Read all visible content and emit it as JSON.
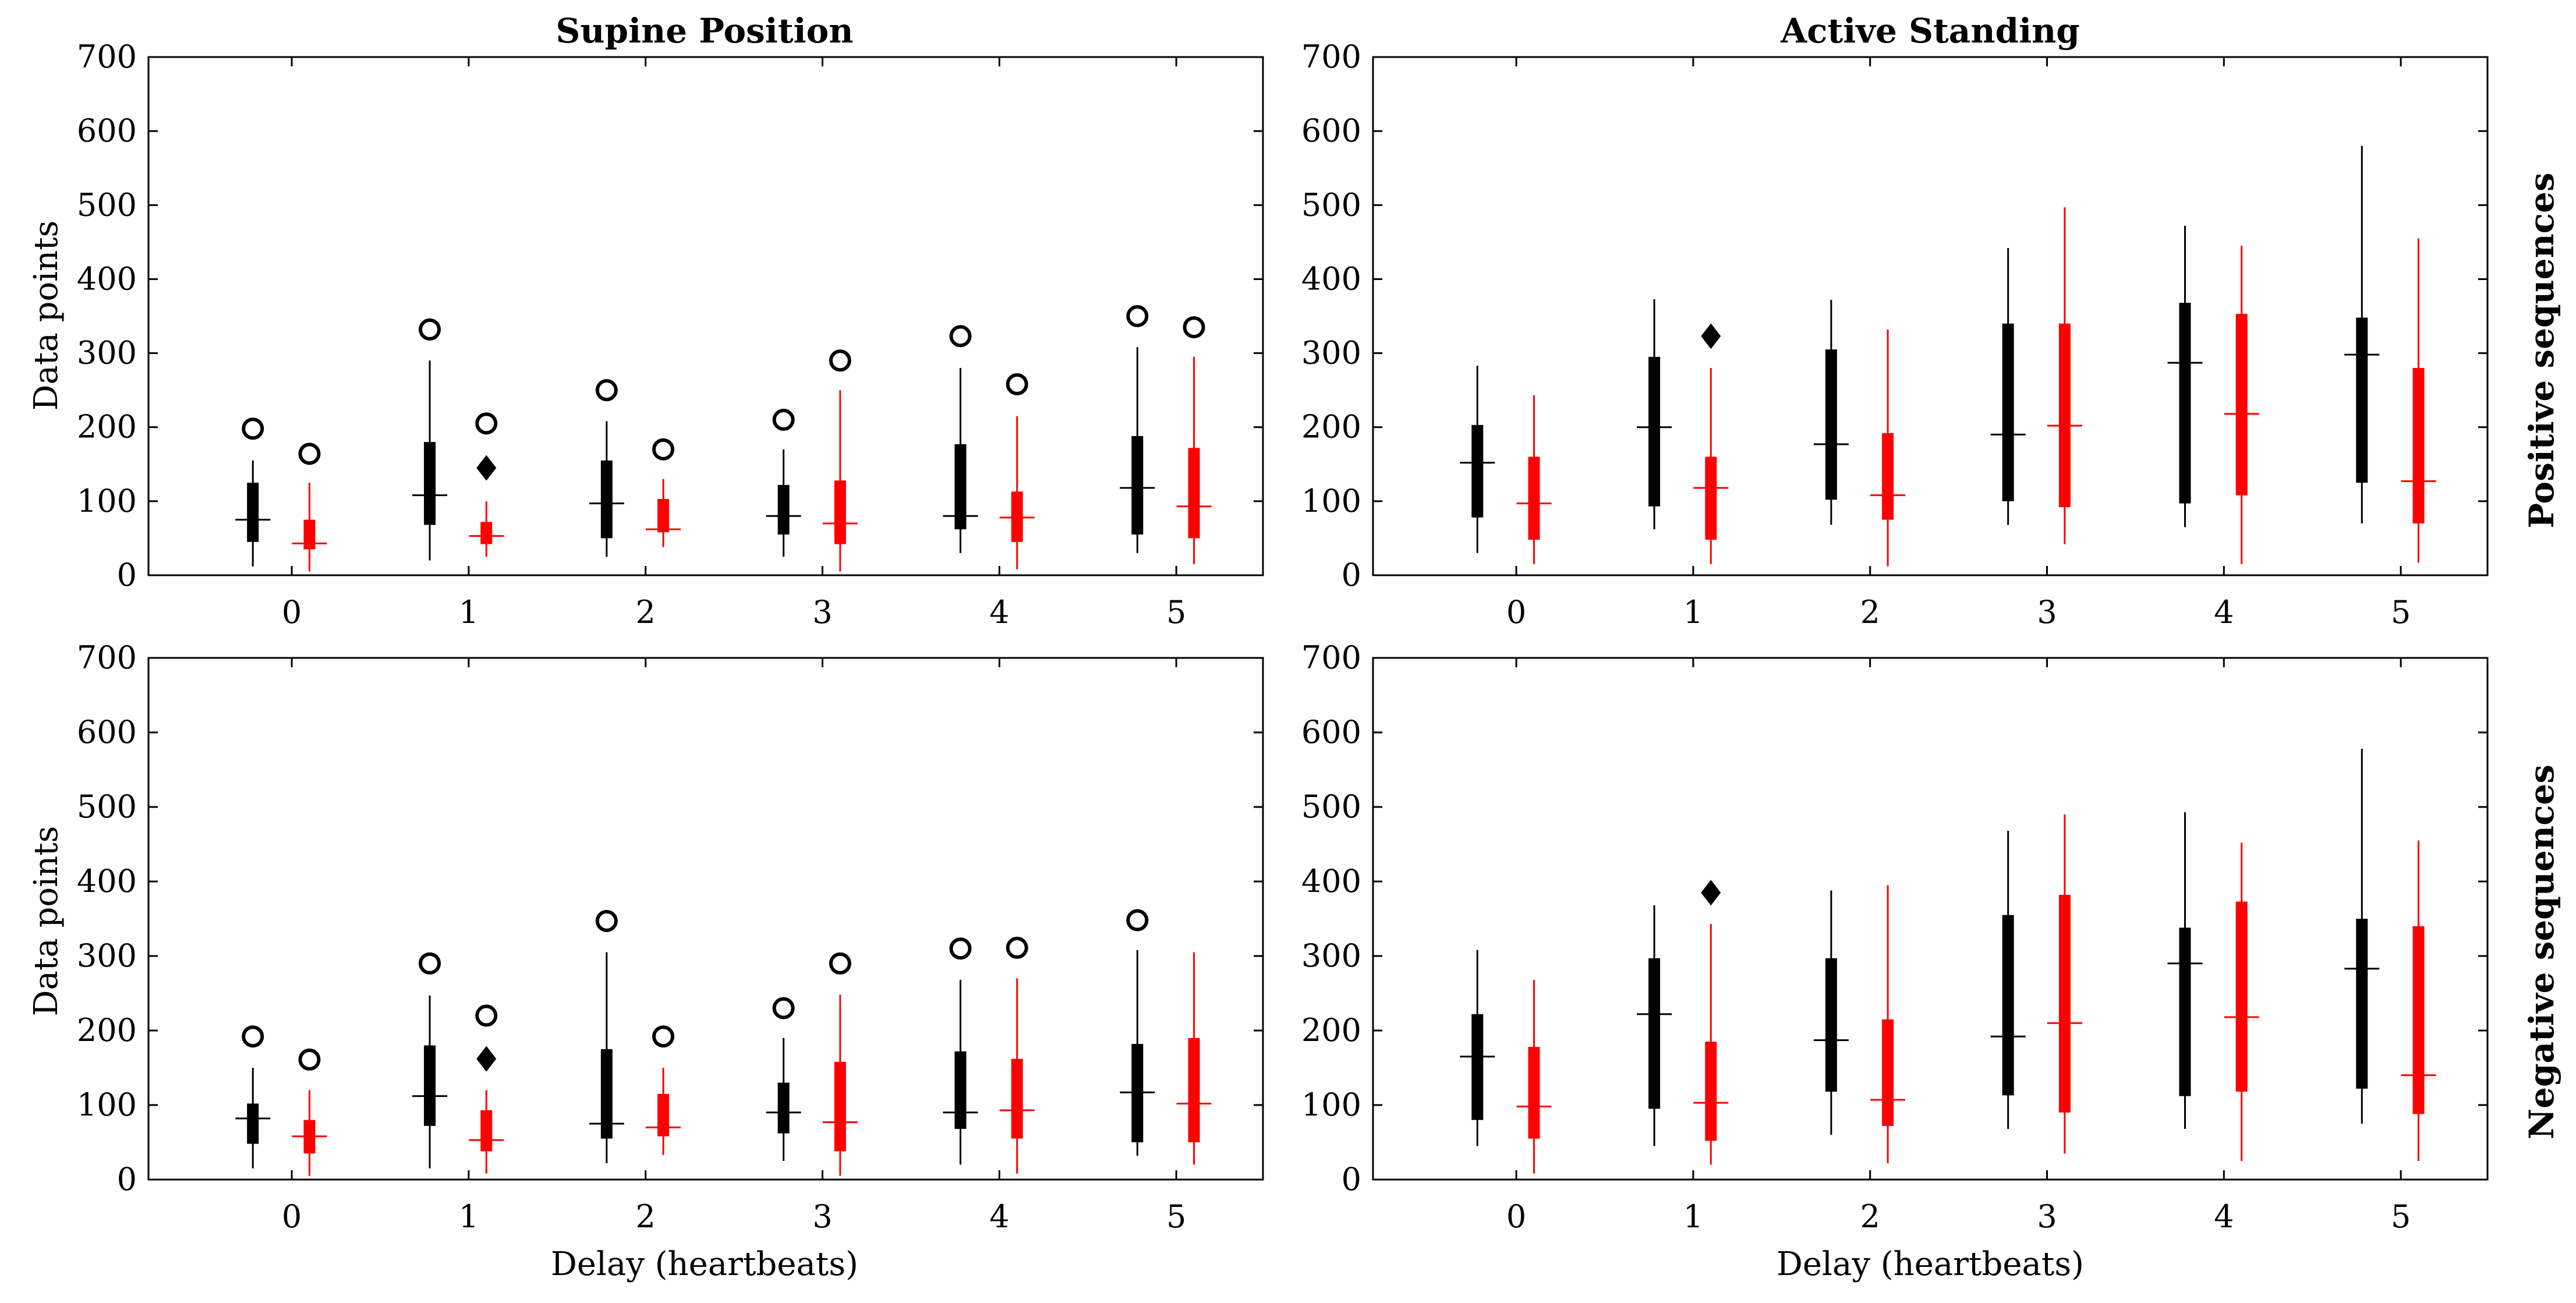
{
  "figure": {
    "col_titles": [
      "Supine Position",
      "Active Standing"
    ],
    "row_titles": [
      "Positive sequences",
      "Negative sequences"
    ],
    "ylabel": "Data points",
    "xlabel": "Delay (heartbeats)"
  },
  "colors": {
    "series_a": "#000000",
    "series_b": "#ff0000",
    "axes": "#000000"
  },
  "chart_data": [
    {
      "type": "boxplot",
      "panel": "supine-positive",
      "title": "Supine Position",
      "ylabel": "Data points",
      "xlabel": "",
      "ylim": [
        0,
        700
      ],
      "yticks": [
        0,
        100,
        200,
        300,
        400,
        500,
        600,
        700
      ],
      "categories": [
        "0",
        "1",
        "2",
        "3",
        "4",
        "5"
      ],
      "series": [
        {
          "name": "black",
          "color": "#000000",
          "boxes": [
            {
              "min": 12,
              "q1": 45,
              "median": 75,
              "q3": 125,
              "max": 155,
              "outlier": 198
            },
            {
              "min": 20,
              "q1": 68,
              "median": 108,
              "q3": 180,
              "max": 290,
              "outlier": 332
            },
            {
              "min": 25,
              "q1": 50,
              "median": 97,
              "q3": 155,
              "max": 208,
              "outlier": 250
            },
            {
              "min": 25,
              "q1": 55,
              "median": 80,
              "q3": 122,
              "max": 170,
              "outlier": 210
            },
            {
              "min": 30,
              "q1": 62,
              "median": 80,
              "q3": 177,
              "max": 280,
              "outlier": 323
            },
            {
              "min": 30,
              "q1": 55,
              "median": 118,
              "q3": 188,
              "max": 308,
              "outlier": 350
            }
          ]
        },
        {
          "name": "red",
          "color": "#ff0000",
          "boxes": [
            {
              "min": 5,
              "q1": 35,
              "median": 43,
              "q3": 75,
              "max": 125,
              "outlier": 164
            },
            {
              "min": 25,
              "q1": 42,
              "median": 53,
              "q3": 72,
              "max": 100,
              "outlier": 205
            },
            {
              "min": 38,
              "q1": 58,
              "median": 62,
              "q3": 103,
              "max": 130,
              "outlier": 170
            },
            {
              "min": 5,
              "q1": 42,
              "median": 70,
              "q3": 128,
              "max": 250,
              "outlier": 290
            },
            {
              "min": 8,
              "q1": 45,
              "median": 78,
              "q3": 113,
              "max": 215,
              "outlier": 258
            },
            {
              "min": 15,
              "q1": 50,
              "median": 93,
              "q3": 172,
              "max": 295,
              "outlier": 335
            }
          ]
        }
      ],
      "diamond": {
        "category": "1",
        "value": 145
      }
    },
    {
      "type": "boxplot",
      "panel": "standing-positive",
      "title": "Active Standing",
      "ylabel": "",
      "xlabel": "",
      "ylim": [
        0,
        700
      ],
      "yticks": [
        0,
        100,
        200,
        300,
        400,
        500,
        600,
        700
      ],
      "categories": [
        "0",
        "1",
        "2",
        "3",
        "4",
        "5"
      ],
      "series": [
        {
          "name": "black",
          "color": "#000000",
          "boxes": [
            {
              "min": 30,
              "q1": 78,
              "median": 152,
              "q3": 203,
              "max": 283
            },
            {
              "min": 62,
              "q1": 93,
              "median": 200,
              "q3": 295,
              "max": 373
            },
            {
              "min": 68,
              "q1": 102,
              "median": 177,
              "q3": 305,
              "max": 372
            },
            {
              "min": 68,
              "q1": 100,
              "median": 190,
              "q3": 340,
              "max": 442
            },
            {
              "min": 65,
              "q1": 97,
              "median": 287,
              "q3": 368,
              "max": 472
            },
            {
              "min": 70,
              "q1": 125,
              "median": 298,
              "q3": 348,
              "max": 580
            }
          ]
        },
        {
          "name": "red",
          "color": "#ff0000",
          "boxes": [
            {
              "min": 15,
              "q1": 48,
              "median": 97,
              "q3": 160,
              "max": 243
            },
            {
              "min": 15,
              "q1": 48,
              "median": 118,
              "q3": 160,
              "max": 280
            },
            {
              "min": 12,
              "q1": 75,
              "median": 108,
              "q3": 192,
              "max": 332
            },
            {
              "min": 42,
              "q1": 92,
              "median": 202,
              "q3": 340,
              "max": 497
            },
            {
              "min": 15,
              "q1": 108,
              "median": 218,
              "q3": 353,
              "max": 445
            },
            {
              "min": 17,
              "q1": 70,
              "median": 127,
              "q3": 280,
              "max": 455
            }
          ]
        }
      ],
      "diamond": {
        "category": "1",
        "value": 323
      }
    },
    {
      "type": "boxplot",
      "panel": "supine-negative",
      "title": "",
      "ylabel": "Data points",
      "xlabel": "Delay (heartbeats)",
      "ylim": [
        0,
        700
      ],
      "yticks": [
        0,
        100,
        200,
        300,
        400,
        500,
        600,
        700
      ],
      "categories": [
        "0",
        "1",
        "2",
        "3",
        "4",
        "5"
      ],
      "series": [
        {
          "name": "black",
          "color": "#000000",
          "boxes": [
            {
              "min": 15,
              "q1": 48,
              "median": 82,
              "q3": 102,
              "max": 150,
              "outlier": 192
            },
            {
              "min": 15,
              "q1": 72,
              "median": 112,
              "q3": 180,
              "max": 247,
              "outlier": 290
            },
            {
              "min": 22,
              "q1": 55,
              "median": 75,
              "q3": 175,
              "max": 305,
              "outlier": 347
            },
            {
              "min": 25,
              "q1": 62,
              "median": 90,
              "q3": 130,
              "max": 190,
              "outlier": 230
            },
            {
              "min": 20,
              "q1": 68,
              "median": 90,
              "q3": 172,
              "max": 268,
              "outlier": 310
            },
            {
              "min": 32,
              "q1": 50,
              "median": 117,
              "q3": 182,
              "max": 308,
              "outlier": 348
            }
          ]
        },
        {
          "name": "red",
          "color": "#ff0000",
          "boxes": [
            {
              "min": 5,
              "q1": 35,
              "median": 58,
              "q3": 80,
              "max": 120,
              "outlier": 161
            },
            {
              "min": 8,
              "q1": 38,
              "median": 53,
              "q3": 93,
              "max": 120,
              "outlier": 220
            },
            {
              "min": 33,
              "q1": 58,
              "median": 70,
              "q3": 115,
              "max": 150,
              "outlier": 192
            },
            {
              "min": 5,
              "q1": 38,
              "median": 77,
              "q3": 158,
              "max": 248,
              "outlier": 290
            },
            {
              "min": 8,
              "q1": 55,
              "median": 93,
              "q3": 162,
              "max": 270,
              "outlier": 311
            },
            {
              "min": 20,
              "q1": 50,
              "median": 102,
              "q3": 190,
              "max": 305
            }
          ]
        }
      ],
      "diamond": {
        "category": "1",
        "value": 162
      }
    },
    {
      "type": "boxplot",
      "panel": "standing-negative",
      "title": "",
      "ylabel": "",
      "xlabel": "Delay (heartbeats)",
      "ylim": [
        0,
        700
      ],
      "yticks": [
        0,
        100,
        200,
        300,
        400,
        500,
        600,
        700
      ],
      "categories": [
        "0",
        "1",
        "2",
        "3",
        "4",
        "5"
      ],
      "series": [
        {
          "name": "black",
          "color": "#000000",
          "boxes": [
            {
              "min": 45,
              "q1": 80,
              "median": 165,
              "q3": 222,
              "max": 308
            },
            {
              "min": 45,
              "q1": 95,
              "median": 222,
              "q3": 297,
              "max": 368
            },
            {
              "min": 60,
              "q1": 118,
              "median": 187,
              "q3": 297,
              "max": 388
            },
            {
              "min": 68,
              "q1": 113,
              "median": 192,
              "q3": 355,
              "max": 468
            },
            {
              "min": 68,
              "q1": 112,
              "median": 290,
              "q3": 338,
              "max": 493
            },
            {
              "min": 75,
              "q1": 122,
              "median": 283,
              "q3": 350,
              "max": 578
            }
          ]
        },
        {
          "name": "red",
          "color": "#ff0000",
          "boxes": [
            {
              "min": 8,
              "q1": 55,
              "median": 98,
              "q3": 178,
              "max": 268
            },
            {
              "min": 20,
              "q1": 52,
              "median": 103,
              "q3": 185,
              "max": 343
            },
            {
              "min": 22,
              "q1": 72,
              "median": 107,
              "q3": 215,
              "max": 395
            },
            {
              "min": 35,
              "q1": 90,
              "median": 210,
              "q3": 382,
              "max": 490
            },
            {
              "min": 25,
              "q1": 118,
              "median": 218,
              "q3": 373,
              "max": 452
            },
            {
              "min": 25,
              "q1": 88,
              "median": 140,
              "q3": 340,
              "max": 455
            }
          ]
        }
      ],
      "diamond": {
        "category": "1",
        "value": 385
      }
    }
  ]
}
